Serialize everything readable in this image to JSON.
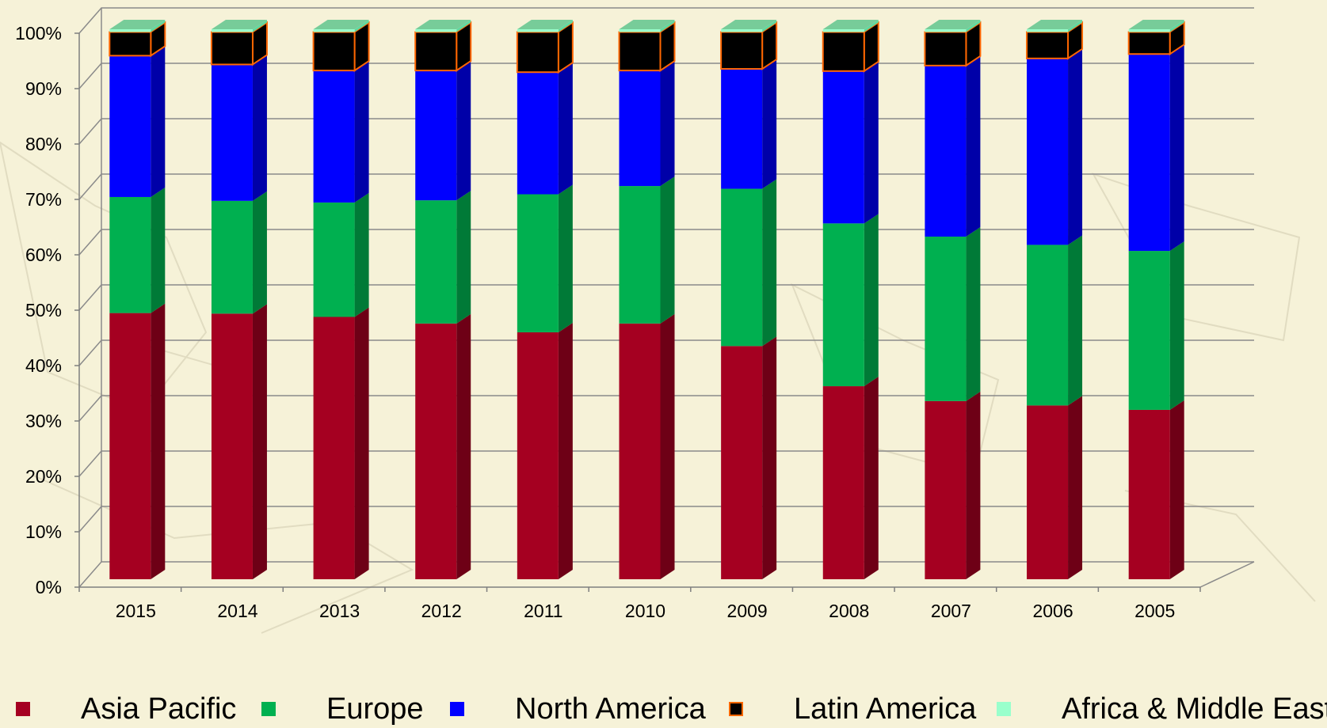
{
  "chart_data": {
    "type": "bar",
    "stacked": true,
    "normalized": true,
    "three_d": true,
    "title": "",
    "xlabel": "",
    "ylabel": "",
    "ylim": [
      0,
      100
    ],
    "yticks": [
      "0%",
      "10%",
      "20%",
      "30%",
      "40%",
      "50%",
      "60%",
      "70%",
      "80%",
      "90%",
      "100%"
    ],
    "categories": [
      "2015",
      "2014",
      "2013",
      "2012",
      "2011",
      "2010",
      "2009",
      "2008",
      "2007",
      "2006",
      "2005"
    ],
    "series": [
      {
        "name": "Asia Pacific",
        "color": "#a50021",
        "side": "#6e0016",
        "values": [
          48.4,
          48.3,
          47.7,
          46.5,
          44.9,
          46.5,
          42.4,
          35.1,
          32.4,
          31.6,
          30.8
        ]
      },
      {
        "name": "Europe",
        "color": "#00b050",
        "side": "#007a37",
        "values": [
          21.1,
          20.5,
          20.8,
          22.4,
          25.1,
          25.0,
          28.6,
          29.6,
          29.9,
          29.2,
          28.9
        ]
      },
      {
        "name": "North America",
        "color": "#0000ff",
        "side": "#0000a8",
        "values": [
          25.7,
          24.8,
          24.0,
          23.6,
          22.2,
          21.0,
          21.8,
          27.7,
          31.1,
          33.9,
          35.8
        ]
      },
      {
        "name": "Latin America",
        "color": "#000000",
        "side": "#000000",
        "stroke": "#ff6600",
        "values": [
          4.3,
          5.9,
          7.0,
          7.0,
          7.3,
          7.0,
          6.7,
          7.1,
          6.1,
          4.8,
          4.0
        ]
      },
      {
        "name": "Africa & Middle East",
        "color": "#99ffcc",
        "side": "#5fd8a0",
        "values": [
          0.5,
          0.5,
          0.5,
          0.5,
          0.5,
          0.5,
          0.5,
          0.5,
          0.5,
          0.5,
          0.5
        ]
      }
    ],
    "grid": true,
    "legend_position": "bottom"
  }
}
